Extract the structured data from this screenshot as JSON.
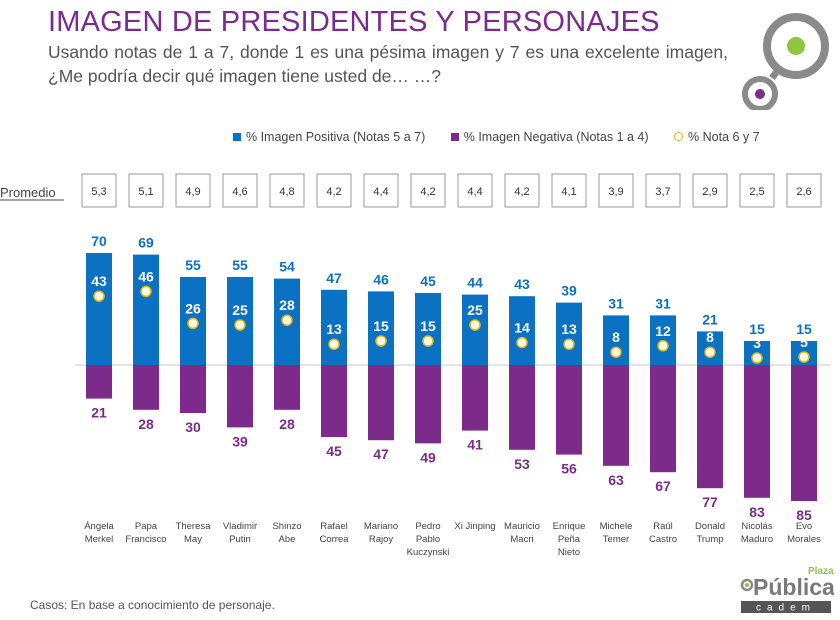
{
  "title": "IMAGEN DE PRESIDENTES Y PERSONAJES",
  "subtitle": "Usando notas de 1 a 7, donde 1 es una pésima imagen y 7 es una excelente imagen, ¿Me podría decir qué imagen tiene usted de… …?",
  "footnote": "Casos: En base a conocimiento de personaje.",
  "brand": {
    "small": "Plaza",
    "name": "Pública",
    "sub": "cadem"
  },
  "colors": {
    "positive": "#0b71c3",
    "negative": "#7d2b8b",
    "title": "#7b2a90",
    "dot_border": "#e8b70c",
    "logo_green": "#8dc63f",
    "logo_gray": "#8a8a8a"
  },
  "chart_data": {
    "type": "bar",
    "legend_position": "top",
    "promedio_label": "Promedio",
    "categories": [
      [
        "Ángela",
        "Merkel"
      ],
      [
        "Papa",
        "Francisco"
      ],
      [
        "Theresa",
        "May"
      ],
      [
        "Vladimir",
        "Putin"
      ],
      [
        "Shinzo",
        "Abe"
      ],
      [
        "Rafael",
        "Correa"
      ],
      [
        "Mariano",
        "Rajoy"
      ],
      [
        "Pedro",
        "Pablo",
        "Kuczynski"
      ],
      [
        "Xi Jinping"
      ],
      [
        "Mauricio",
        "Macri"
      ],
      [
        "Enrique",
        "Peña",
        "Nieto"
      ],
      [
        "Michele",
        "Temer"
      ],
      [
        "Raúl",
        "Castro"
      ],
      [
        "Donald",
        "Trump"
      ],
      [
        "Nicolás",
        "Maduro"
      ],
      [
        "Evo",
        "Morales"
      ]
    ],
    "promedio": [
      "5,3",
      "5,1",
      "4,9",
      "4,6",
      "4,8",
      "4,2",
      "4,4",
      "4,2",
      "4,4",
      "4,2",
      "4,1",
      "3,9",
      "3,7",
      "2,9",
      "2,5",
      "2,6"
    ],
    "series": [
      {
        "name": "% Imagen Positiva (Notas 5 a 7)",
        "values": [
          70,
          69,
          55,
          55,
          54,
          47,
          46,
          45,
          44,
          43,
          39,
          31,
          31,
          21,
          15,
          15
        ]
      },
      {
        "name": "% Imagen Negativa (Notas 1 a 4)",
        "values": [
          21,
          28,
          30,
          39,
          28,
          45,
          47,
          49,
          41,
          53,
          56,
          63,
          67,
          77,
          83,
          85
        ]
      },
      {
        "name": "% Nota 6 y 7",
        "values": [
          43,
          46,
          26,
          25,
          28,
          13,
          15,
          15,
          25,
          14,
          13,
          8,
          12,
          8,
          3,
          5
        ]
      }
    ]
  }
}
